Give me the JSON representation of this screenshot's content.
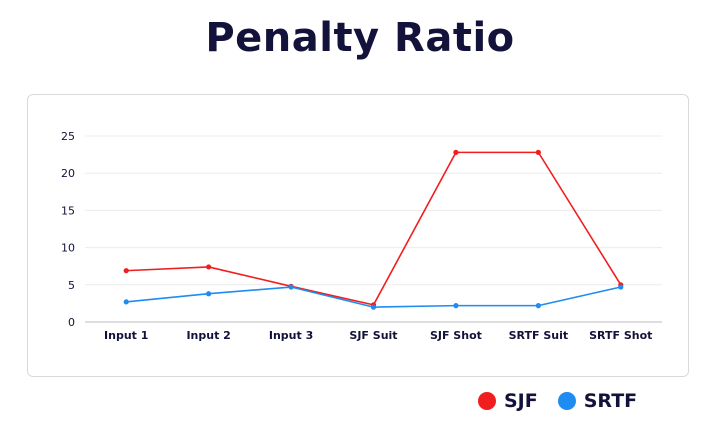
{
  "title": "Penalty Ratio",
  "colors": {
    "sjf": "#f01e1e",
    "srtf": "#1e8cf0",
    "grid": "#ececec",
    "axis_text": "#12123a"
  },
  "chart_data": {
    "type": "line",
    "title": "Penalty Ratio",
    "xlabel": "",
    "ylabel": "",
    "categories": [
      "Input 1",
      "Input 2",
      "Input 3",
      "SJF Suit",
      "SJF Shot",
      "SRTF Suit",
      "SRTF Shot"
    ],
    "y_ticks": [
      "0",
      "5",
      "10",
      "15",
      "20",
      "25"
    ],
    "ylim": [
      0,
      25
    ],
    "grid": true,
    "legend_position": "bottom-right",
    "series": [
      {
        "name": "SJF",
        "color": "#f01e1e",
        "values": [
          6.9,
          7.4,
          4.8,
          2.3,
          22.8,
          22.8,
          5.0
        ]
      },
      {
        "name": "SRTF",
        "color": "#1e8cf0",
        "values": [
          2.7,
          3.8,
          4.7,
          2.0,
          2.2,
          2.2,
          4.7
        ]
      }
    ]
  },
  "legend": {
    "items": [
      {
        "label": "SJF",
        "color": "#f01e1e"
      },
      {
        "label": "SRTF",
        "color": "#1e8cf0"
      }
    ]
  }
}
